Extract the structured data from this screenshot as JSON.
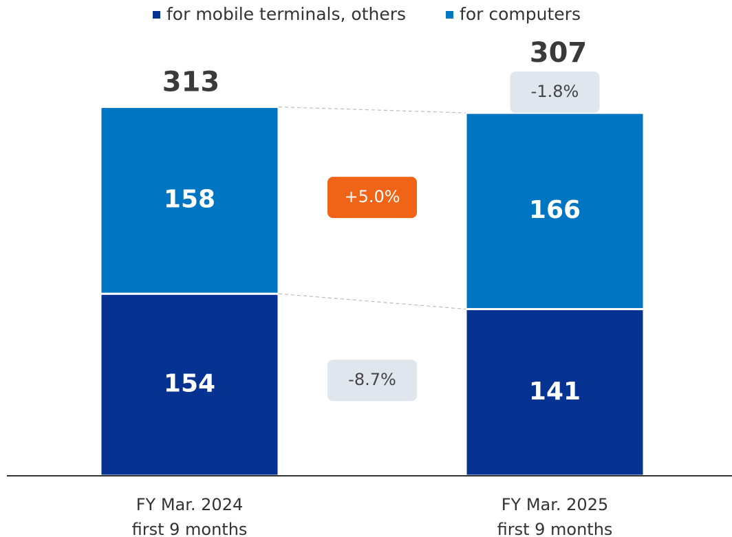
{
  "chart_data": {
    "type": "stacked_bar",
    "categories": [
      [
        "FY Mar. 2024",
        "first 9 months"
      ],
      [
        "FY Mar. 2025",
        "first 9 months"
      ]
    ],
    "series": [
      {
        "name": "for mobile terminals, others",
        "color": "#063391",
        "values": [
          154,
          141
        ],
        "change": "-8.7%",
        "change_color": "#dfe6ee"
      },
      {
        "name": "for computers",
        "color": "#0075c1",
        "values": [
          158,
          166
        ],
        "change": "+5.0%",
        "change_color": "#f06418"
      }
    ],
    "totals": [
      313,
      307
    ],
    "total_change": "-1.8%",
    "total_change_color": "#dfe6ee",
    "ylim": [
      0,
      360
    ]
  }
}
